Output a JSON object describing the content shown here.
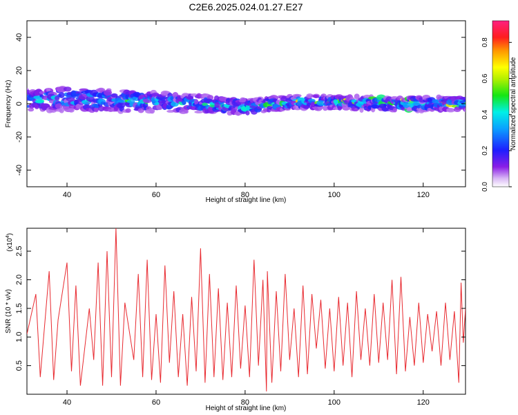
{
  "title": "C2E6.2025.024.01.27.E27",
  "colors": {
    "snr_line": "#e8282e",
    "axis": "#000000",
    "background": "#ffffff"
  },
  "chart_data": [
    {
      "type": "heatmap",
      "xlabel": "Height of straight line (km)",
      "ylabel": "Frequency (Hz)",
      "xlim": [
        31,
        129.5
      ],
      "ylim": [
        -50,
        50
      ],
      "xticks": [
        "40",
        "60",
        "80",
        "100",
        "120"
      ],
      "yticks": [
        "40",
        "20",
        "0",
        "-20",
        "-40"
      ],
      "description_values": {
        "band_center_hz": [
          [
            32,
            2
          ],
          [
            40,
            3
          ],
          [
            50,
            2
          ],
          [
            60,
            1
          ],
          [
            70,
            0
          ],
          [
            80,
            -2
          ],
          [
            90,
            1
          ],
          [
            100,
            1
          ],
          [
            110,
            0
          ],
          [
            120,
            0
          ],
          [
            129,
            0
          ]
        ],
        "band_halfwidth_hz": [
          [
            32,
            6
          ],
          [
            40,
            7
          ],
          [
            55,
            6
          ],
          [
            70,
            5
          ],
          [
            85,
            4
          ],
          [
            100,
            4
          ],
          [
            129,
            4
          ]
        ]
      },
      "colorbar": {
        "label": "Normalized spectral amplitude",
        "range": [
          0,
          0.92
        ],
        "ticks": [
          "0.0",
          "0.2",
          "0.4",
          "0.6",
          "0.8"
        ],
        "colormap": "rainbow (white→violet→blue→cyan→green→yellow→orange→red→magenta)"
      }
    },
    {
      "type": "line",
      "xlabel": "Height of straight line (km)",
      "ylabel": "SNR (10 * v/v)",
      "y_multiplier_label": "(x10",
      "y_multiplier_exp": "4",
      "xlim": [
        31,
        129.5
      ],
      "ylim": [
        0,
        2.9
      ],
      "xticks": [
        "40",
        "60",
        "80",
        "100",
        "120"
      ],
      "yticks": [
        "2.5",
        "2.0",
        "1.5",
        "1.0",
        "0.5"
      ],
      "series": [
        {
          "points": [
            [
              31,
              1.05
            ],
            [
              33,
              1.75
            ],
            [
              34,
              0.3
            ],
            [
              36,
              2.15
            ],
            [
              37,
              0.25
            ],
            [
              38,
              1.3
            ],
            [
              40,
              2.3
            ],
            [
              41,
              0.4
            ],
            [
              42,
              1.9
            ],
            [
              43,
              0.15
            ],
            [
              45,
              1.5
            ],
            [
              46,
              0.6
            ],
            [
              47,
              2.3
            ],
            [
              48,
              0.15
            ],
            [
              49,
              2.5
            ],
            [
              50,
              0.3
            ],
            [
              51,
              2.9
            ],
            [
              52,
              0.15
            ],
            [
              53,
              1.6
            ],
            [
              55,
              0.6
            ],
            [
              56,
              2.1
            ],
            [
              57,
              0.3
            ],
            [
              58,
              2.35
            ],
            [
              59,
              0.25
            ],
            [
              60,
              1.4
            ],
            [
              61,
              0.2
            ],
            [
              62,
              2.25
            ],
            [
              63,
              0.55
            ],
            [
              64,
              1.8
            ],
            [
              65,
              0.3
            ],
            [
              66,
              1.4
            ],
            [
              67,
              0.15
            ],
            [
              68,
              1.7
            ],
            [
              69,
              0.4
            ],
            [
              70,
              2.55
            ],
            [
              71,
              0.2
            ],
            [
              72,
              2.1
            ],
            [
              73,
              0.3
            ],
            [
              74,
              1.85
            ],
            [
              75,
              0.25
            ],
            [
              76,
              1.6
            ],
            [
              77,
              0.3
            ],
            [
              78,
              1.9
            ],
            [
              79,
              0.45
            ],
            [
              80,
              1.55
            ],
            [
              81,
              0.3
            ],
            [
              82,
              2.35
            ],
            [
              83,
              0.5
            ],
            [
              84,
              2.0
            ],
            [
              84.8,
              0.05
            ],
            [
              85,
              2.15
            ],
            [
              86,
              0.2
            ],
            [
              87,
              1.8
            ],
            [
              88,
              0.4
            ],
            [
              89,
              2.1
            ],
            [
              90,
              0.6
            ],
            [
              91,
              1.5
            ],
            [
              92,
              0.3
            ],
            [
              93,
              1.9
            ],
            [
              94,
              0.35
            ],
            [
              95,
              1.75
            ],
            [
              96,
              0.8
            ],
            [
              97,
              1.65
            ],
            [
              98,
              0.45
            ],
            [
              99,
              1.5
            ],
            [
              100,
              0.4
            ],
            [
              101,
              1.7
            ],
            [
              102,
              0.5
            ],
            [
              103,
              1.6
            ],
            [
              104,
              0.3
            ],
            [
              105,
              1.8
            ],
            [
              106,
              0.6
            ],
            [
              107,
              1.5
            ],
            [
              108,
              0.5
            ],
            [
              109,
              1.75
            ],
            [
              110,
              0.55
            ],
            [
              111,
              1.6
            ],
            [
              112,
              0.6
            ],
            [
              113,
              2.0
            ],
            [
              114,
              0.35
            ],
            [
              115,
              2.05
            ],
            [
              116,
              0.4
            ],
            [
              117,
              1.35
            ],
            [
              118,
              0.5
            ],
            [
              119,
              1.6
            ],
            [
              120,
              0.55
            ],
            [
              121,
              1.4
            ],
            [
              122,
              0.75
            ],
            [
              123,
              1.45
            ],
            [
              124,
              0.5
            ],
            [
              125,
              1.6
            ],
            [
              126,
              0.6
            ],
            [
              127,
              1.45
            ],
            [
              128,
              0.2
            ],
            [
              128.5,
              1.95
            ],
            [
              129,
              0.9
            ],
            [
              129.5,
              1.5
            ]
          ]
        }
      ]
    }
  ]
}
